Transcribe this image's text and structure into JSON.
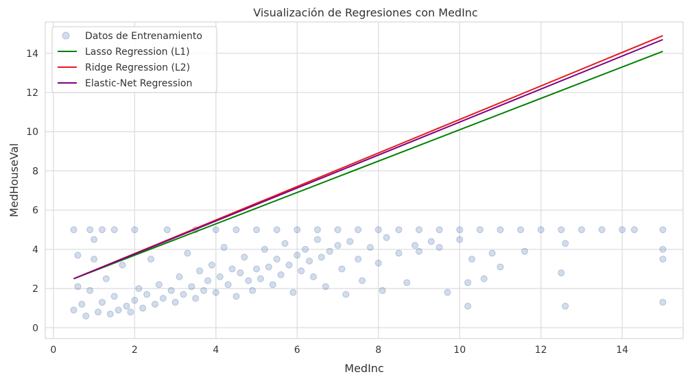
{
  "chart_data": {
    "type": "scatter",
    "title": "Visualización de Regresiones con MedInc",
    "xlabel": "MedInc",
    "ylabel": "MedHouseVal",
    "xlim": [
      -0.2,
      15.5
    ],
    "ylim": [
      -0.55,
      15.6
    ],
    "xticks": [
      0,
      2,
      4,
      6,
      8,
      10,
      12,
      14
    ],
    "yticks": [
      0,
      2,
      4,
      6,
      8,
      10,
      12,
      14
    ],
    "grid": true,
    "legend_position": "top-left",
    "scatter": {
      "name": "Datos de Entrenamiento",
      "color": "#4c72b0",
      "alpha": 0.25,
      "points": [
        [
          0.5,
          0.9
        ],
        [
          0.5,
          5.0
        ],
        [
          0.6,
          2.1
        ],
        [
          0.6,
          3.7
        ],
        [
          0.7,
          1.2
        ],
        [
          0.8,
          0.6
        ],
        [
          0.9,
          1.9
        ],
        [
          0.9,
          5.0
        ],
        [
          1.0,
          3.5
        ],
        [
          1.0,
          4.5
        ],
        [
          1.1,
          0.8
        ],
        [
          1.2,
          1.3
        ],
        [
          1.2,
          5.0
        ],
        [
          1.3,
          2.5
        ],
        [
          1.4,
          0.7
        ],
        [
          1.5,
          1.6
        ],
        [
          1.5,
          5.0
        ],
        [
          1.6,
          0.9
        ],
        [
          1.7,
          3.2
        ],
        [
          1.8,
          1.1
        ],
        [
          1.9,
          0.8
        ],
        [
          2.0,
          1.4
        ],
        [
          2.0,
          5.0
        ],
        [
          2.1,
          2.0
        ],
        [
          2.2,
          1.0
        ],
        [
          2.3,
          1.7
        ],
        [
          2.4,
          3.5
        ],
        [
          2.5,
          1.2
        ],
        [
          2.6,
          2.2
        ],
        [
          2.7,
          1.5
        ],
        [
          2.8,
          5.0
        ],
        [
          2.9,
          1.9
        ],
        [
          3.0,
          1.3
        ],
        [
          3.1,
          2.6
        ],
        [
          3.2,
          1.7
        ],
        [
          3.3,
          3.8
        ],
        [
          3.4,
          2.1
        ],
        [
          3.5,
          1.5
        ],
        [
          3.5,
          5.0
        ],
        [
          3.6,
          2.9
        ],
        [
          3.7,
          1.9
        ],
        [
          3.8,
          2.4
        ],
        [
          3.9,
          3.2
        ],
        [
          4.0,
          1.8
        ],
        [
          4.0,
          5.0
        ],
        [
          4.1,
          2.6
        ],
        [
          4.2,
          4.1
        ],
        [
          4.3,
          2.2
        ],
        [
          4.4,
          3.0
        ],
        [
          4.5,
          1.6
        ],
        [
          4.5,
          5.0
        ],
        [
          4.6,
          2.8
        ],
        [
          4.7,
          3.6
        ],
        [
          4.8,
          2.4
        ],
        [
          4.9,
          1.9
        ],
        [
          5.0,
          3.0
        ],
        [
          5.0,
          5.0
        ],
        [
          5.1,
          2.5
        ],
        [
          5.2,
          4.0
        ],
        [
          5.3,
          3.1
        ],
        [
          5.4,
          2.2
        ],
        [
          5.5,
          3.5
        ],
        [
          5.5,
          5.0
        ],
        [
          5.6,
          2.7
        ],
        [
          5.7,
          4.3
        ],
        [
          5.8,
          3.2
        ],
        [
          5.9,
          1.8
        ],
        [
          6.0,
          3.7
        ],
        [
          6.0,
          5.0
        ],
        [
          6.1,
          2.9
        ],
        [
          6.2,
          4.0
        ],
        [
          6.3,
          3.4
        ],
        [
          6.4,
          2.6
        ],
        [
          6.5,
          4.5
        ],
        [
          6.5,
          5.0
        ],
        [
          6.6,
          3.6
        ],
        [
          6.7,
          2.1
        ],
        [
          6.8,
          3.9
        ],
        [
          7.0,
          4.2
        ],
        [
          7.0,
          5.0
        ],
        [
          7.1,
          3.0
        ],
        [
          7.2,
          1.7
        ],
        [
          7.3,
          4.4
        ],
        [
          7.5,
          3.5
        ],
        [
          7.5,
          5.0
        ],
        [
          7.6,
          2.4
        ],
        [
          7.8,
          4.1
        ],
        [
          8.0,
          3.3
        ],
        [
          8.0,
          5.0
        ],
        [
          8.1,
          1.9
        ],
        [
          8.2,
          4.6
        ],
        [
          8.5,
          3.8
        ],
        [
          8.5,
          5.0
        ],
        [
          8.7,
          2.3
        ],
        [
          8.9,
          4.2
        ],
        [
          9.0,
          3.9
        ],
        [
          9.0,
          5.0
        ],
        [
          9.3,
          4.4
        ],
        [
          9.5,
          4.1
        ],
        [
          9.5,
          5.0
        ],
        [
          9.7,
          1.8
        ],
        [
          10.0,
          4.5
        ],
        [
          10.0,
          5.0
        ],
        [
          10.2,
          2.3
        ],
        [
          10.2,
          1.1
        ],
        [
          10.3,
          3.5
        ],
        [
          10.5,
          5.0
        ],
        [
          10.6,
          2.5
        ],
        [
          10.8,
          3.8
        ],
        [
          11.0,
          5.0
        ],
        [
          11.0,
          3.1
        ],
        [
          11.5,
          5.0
        ],
        [
          11.6,
          3.9
        ],
        [
          12.0,
          5.0
        ],
        [
          12.5,
          5.0
        ],
        [
          12.5,
          2.8
        ],
        [
          12.6,
          1.1
        ],
        [
          12.6,
          4.3
        ],
        [
          13.0,
          5.0
        ],
        [
          13.5,
          5.0
        ],
        [
          14.0,
          5.0
        ],
        [
          14.3,
          5.0
        ],
        [
          15.0,
          5.0
        ],
        [
          15.0,
          4.0
        ],
        [
          15.0,
          3.5
        ],
        [
          15.0,
          1.3
        ]
      ]
    },
    "lines": [
      {
        "name": "Lasso Regression (L1)",
        "color": "#008000",
        "x": [
          0.5,
          15.0
        ],
        "y": [
          2.5,
          14.1
        ]
      },
      {
        "name": "Ridge Regression (L2)",
        "color": "#e31a1c",
        "x": [
          0.5,
          15.0
        ],
        "y": [
          2.5,
          14.9
        ]
      },
      {
        "name": "Elastic-Net Regression",
        "color": "#800080",
        "x": [
          0.5,
          15.0
        ],
        "y": [
          2.5,
          14.7
        ]
      }
    ]
  }
}
